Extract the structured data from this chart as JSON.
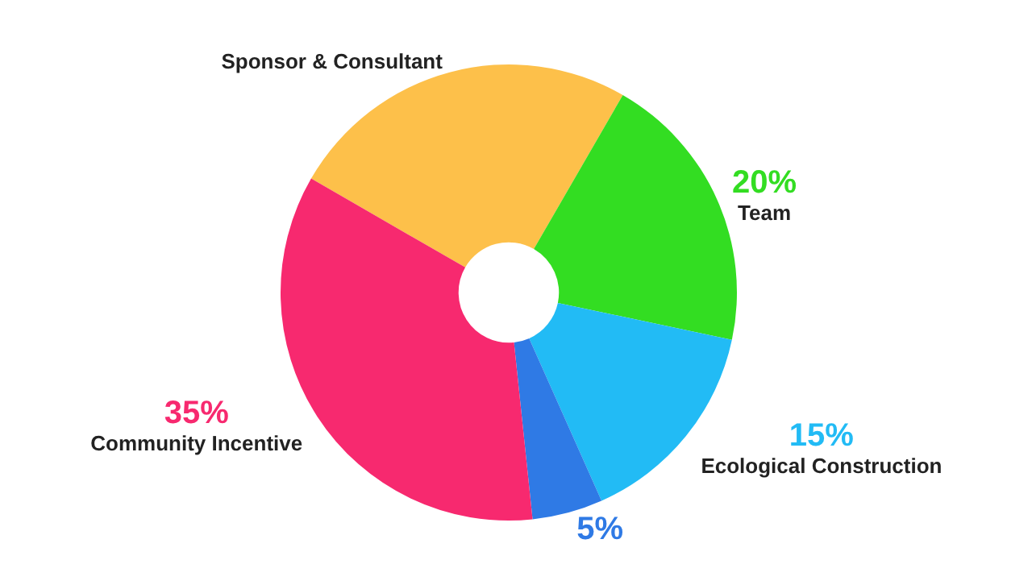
{
  "chart_data": {
    "type": "donut",
    "categories": [
      "Sponsor & Consultant",
      "Team",
      "Ecological Construction",
      null,
      "Community Incentive"
    ],
    "values": [
      25,
      20,
      15,
      5,
      35
    ],
    "colors": [
      "#fdc04a",
      "#33dd22",
      "#22bbf5",
      "#2f7ae5",
      "#f7296f"
    ],
    "value_labels": [
      null,
      "20%",
      "15%",
      "5%",
      "35%"
    ],
    "legend": false
  }
}
